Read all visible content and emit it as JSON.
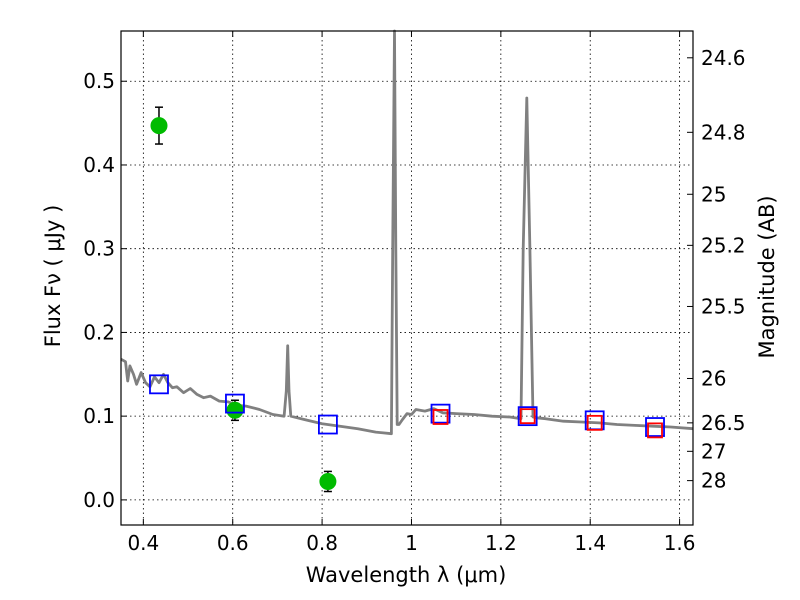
{
  "chart_data": {
    "type": "line",
    "xlabel": "Wavelength  λ (μm)",
    "ylabel": "Flux  Fν  ( μJy )",
    "ylabel_right": "Magnitude (AB)",
    "xlim": [
      0.35,
      1.63
    ],
    "ylim": [
      -0.03,
      0.56
    ],
    "x_ticks": [
      0.4,
      0.6,
      0.8,
      1.0,
      1.2,
      1.4,
      1.6
    ],
    "x_tick_labels": [
      "0.4",
      "0.6",
      "0.8",
      "1",
      "1.2",
      "1.4",
      "1.6"
    ],
    "y_ticks": [
      0.0,
      0.1,
      0.2,
      0.3,
      0.4,
      0.5
    ],
    "y_tick_labels": [
      "0.0",
      "0.1",
      "0.2",
      "0.3",
      "0.4",
      "0.5"
    ],
    "mag_ticks": [
      {
        "label": "24.6",
        "flux": 0.528
      },
      {
        "label": "24.8",
        "flux": 0.439
      },
      {
        "label": "25",
        "flux": 0.365
      },
      {
        "label": "25.2",
        "flux": 0.304
      },
      {
        "label": "25.5",
        "flux": 0.231
      },
      {
        "label": "26",
        "flux": 0.145
      },
      {
        "label": "26.5",
        "flux": 0.092
      },
      {
        "label": "27",
        "flux": 0.058
      },
      {
        "label": "28",
        "flux": 0.023
      }
    ],
    "grid": true,
    "series": [
      {
        "name": "model spectrum",
        "kind": "line",
        "color": "#808080",
        "x": [
          0.35,
          0.36,
          0.365,
          0.37,
          0.378,
          0.385,
          0.395,
          0.405,
          0.415,
          0.425,
          0.435,
          0.445,
          0.455,
          0.465,
          0.475,
          0.49,
          0.505,
          0.52,
          0.535,
          0.55,
          0.57,
          0.59,
          0.61,
          0.63,
          0.66,
          0.69,
          0.715,
          0.72,
          0.723,
          0.726,
          0.73,
          0.76,
          0.8,
          0.84,
          0.88,
          0.92,
          0.955,
          0.958,
          0.962,
          0.965,
          0.968,
          0.972,
          0.98,
          0.99,
          1.0,
          1.01,
          1.03,
          1.05,
          1.07,
          1.1,
          1.14,
          1.18,
          1.22,
          1.245,
          1.25,
          1.258,
          1.265,
          1.272,
          1.28,
          1.3,
          1.34,
          1.38,
          1.42,
          1.46,
          1.5,
          1.54,
          1.58,
          1.63
        ],
        "y": [
          0.168,
          0.165,
          0.142,
          0.16,
          0.15,
          0.138,
          0.152,
          0.14,
          0.135,
          0.147,
          0.14,
          0.15,
          0.14,
          0.134,
          0.135,
          0.128,
          0.133,
          0.126,
          0.122,
          0.124,
          0.118,
          0.117,
          0.113,
          0.112,
          0.108,
          0.102,
          0.1,
          0.13,
          0.184,
          0.13,
          0.1,
          0.096,
          0.091,
          0.088,
          0.085,
          0.081,
          0.079,
          0.3,
          0.56,
          0.3,
          0.09,
          0.09,
          0.096,
          0.103,
          0.102,
          0.108,
          0.106,
          0.109,
          0.104,
          0.103,
          0.102,
          0.1,
          0.099,
          0.097,
          0.3,
          0.48,
          0.3,
          0.099,
          0.098,
          0.097,
          0.094,
          0.093,
          0.092,
          0.09,
          0.089,
          0.088,
          0.087,
          0.085
        ]
      },
      {
        "name": "photometry points",
        "kind": "errorbar",
        "color": "#00bb00",
        "x": [
          0.435,
          0.605,
          0.813
        ],
        "y": [
          0.447,
          0.107,
          0.022
        ],
        "yerr": [
          0.022,
          0.012,
          0.012
        ]
      },
      {
        "name": "model photometry",
        "kind": "square",
        "color": "#0000ff",
        "x": [
          0.435,
          0.605,
          0.813,
          1.065,
          1.26,
          1.41,
          1.545
        ],
        "y": [
          0.138,
          0.115,
          0.09,
          0.103,
          0.1,
          0.095,
          0.087
        ]
      },
      {
        "name": "inner squares",
        "kind": "square",
        "color": "#ff0000",
        "x": [
          1.065,
          1.26,
          1.41,
          1.545
        ],
        "y": [
          0.099,
          0.1,
          0.092,
          0.083
        ]
      }
    ]
  }
}
